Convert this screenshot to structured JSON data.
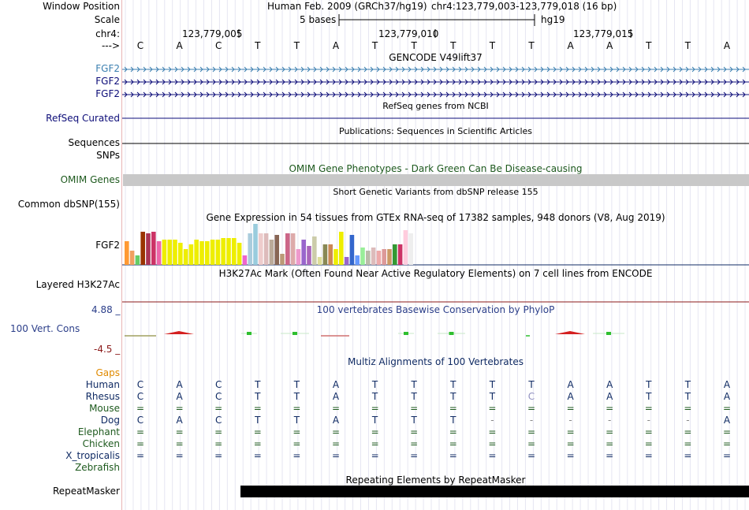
{
  "header": {
    "window_position_label": "Window Position",
    "assembly": "Human Feb. 2009 (GRCh37/hg19)",
    "position": "chr4:123,779,003-123,779,018 (16 bp)",
    "scale_label": "Scale",
    "scale_text": "5 bases",
    "scale_db": "hg19",
    "chrom_label": "chr4:",
    "strand_label": "--->",
    "coords": [
      "123,779,005",
      "123,779,010",
      "123,779,015"
    ]
  },
  "sequence": [
    "C",
    "A",
    "C",
    "T",
    "T",
    "A",
    "T",
    "T",
    "T",
    "T",
    "T",
    "A",
    "A",
    "T",
    "T",
    "A"
  ],
  "tracks": {
    "gencode": {
      "title": "GENCODE V49lift37",
      "genes": [
        "FGF2",
        "FGF2",
        "FGF2"
      ]
    },
    "refseq": {
      "title": "RefSeq genes from NCBI",
      "label": "RefSeq Curated"
    },
    "publications": {
      "title": "Publications: Sequences in Scientific Articles",
      "labels": [
        "Sequences",
        "SNPs"
      ]
    },
    "omim": {
      "title": "OMIM Gene Phenotypes - Dark Green Can Be Disease-causing",
      "label": "OMIM Genes"
    },
    "dbsnp": {
      "title": "Short Genetic Variants from dbSNP release 155",
      "label": "Common dbSNP(155)"
    },
    "gtex": {
      "title": "Gene Expression in 54 tissues from GTEx RNA-seq of 17382 samples, 948 donors (V8, Aug 2019)",
      "label": "FGF2"
    },
    "h3k27ac": {
      "title": "H3K27Ac Mark (Often Found Near Active Regulatory Elements) on 7 cell lines from ENCODE",
      "label": "Layered H3K27Ac"
    },
    "conservation": {
      "title": "100 vertebrates Basewise Conservation by PhyloP",
      "label": "100 Vert. Cons",
      "ymax": "4.88 _",
      "ymin": "-4.5 _"
    },
    "multiz": {
      "title": "Multiz Alignments of 100 Vertebrates",
      "gaps_label": "Gaps",
      "species": [
        {
          "name": "Human",
          "row": [
            "C",
            "A",
            "C",
            "T",
            "T",
            "A",
            "T",
            "T",
            "T",
            "T",
            "T",
            "A",
            "A",
            "T",
            "T",
            "A"
          ]
        },
        {
          "name": "Rhesus",
          "row": [
            "C",
            "A",
            "C",
            "T",
            "T",
            "A",
            "T",
            "T",
            "T",
            "T",
            "C",
            "A",
            "A",
            "T",
            "T",
            "A"
          ]
        },
        {
          "name": "Mouse",
          "row": [
            "=",
            "=",
            "=",
            "=",
            "=",
            "=",
            "=",
            "=",
            "=",
            "=",
            "=",
            "=",
            "=",
            "=",
            "=",
            "="
          ]
        },
        {
          "name": "Dog",
          "row": [
            "C",
            "A",
            "C",
            "T",
            "T",
            "A",
            "T",
            "T",
            "T",
            "-",
            "-",
            "-",
            "-",
            "-",
            "-",
            "A"
          ]
        },
        {
          "name": "Elephant",
          "row": [
            "=",
            "=",
            "=",
            "=",
            "=",
            "=",
            "=",
            "=",
            "=",
            "=",
            "=",
            "=",
            "=",
            "=",
            "=",
            "="
          ]
        },
        {
          "name": "Chicken",
          "row": [
            "=",
            "=",
            "=",
            "=",
            "=",
            "=",
            "=",
            "=",
            "=",
            "=",
            "=",
            "=",
            "=",
            "=",
            "=",
            "="
          ]
        },
        {
          "name": "X_tropicalis",
          "row": [
            "=",
            "=",
            "=",
            "=",
            "=",
            "=",
            "=",
            "=",
            "=",
            "=",
            "=",
            "=",
            "=",
            "=",
            "=",
            "="
          ]
        },
        {
          "name": "Zebrafish",
          "row": []
        }
      ]
    },
    "repeatmasker": {
      "title": "Repeating Elements by RepeatMasker",
      "label": "RepeatMasker"
    }
  },
  "chart_data": {
    "type": "bar",
    "title": "Gene Expression in 54 tissues from GTEx RNA-seq of 17382 samples, 948 donors (V8, Aug 2019)",
    "xlabel": "",
    "ylabel": "",
    "ylim": [
      0,
      52
    ],
    "values": [
      30,
      18,
      12,
      42,
      40,
      42,
      30,
      32,
      32,
      32,
      28,
      20,
      26,
      32,
      30,
      30,
      32,
      32,
      34,
      34,
      34,
      28,
      12,
      40,
      52,
      40,
      40,
      32,
      38,
      14,
      40,
      40,
      20,
      32,
      24,
      36,
      10,
      26,
      26,
      20,
      42,
      10,
      38,
      12,
      22,
      18,
      22,
      18,
      20,
      20,
      26,
      26,
      44,
      40
    ],
    "colors": [
      "#ff9933",
      "#f0a060",
      "#66cc66",
      "#993300",
      "#aa3355",
      "#cc3366",
      "#ee66aa",
      "#eeee00",
      "#eeee00",
      "#eeee00",
      "#eeee00",
      "#eeee00",
      "#eeee00",
      "#eeee00",
      "#eeee00",
      "#eeee00",
      "#eeee00",
      "#eeee00",
      "#eeee00",
      "#eeee00",
      "#eeee00",
      "#eeee00",
      "#ee66cc",
      "#aaccdd",
      "#99ccdd",
      "#eecccc",
      "#ddbbbb",
      "#bbaa99",
      "#886655",
      "#bb9977",
      "#cc6688",
      "#ddaaaa",
      "#ee99cc",
      "#9966cc",
      "#aa66bb",
      "#ccccaa",
      "#dddd99",
      "#888855",
      "#cc8855",
      "#eeee00",
      "#eeee00",
      "#9966cc",
      "#3366cc",
      "#6699ff",
      "#99ee99",
      "#bbbbaa",
      "#ddbbbb",
      "#eeaaaa",
      "#dd9999",
      "#cc9966",
      "#339933",
      "#cc3366",
      "#ffccdd",
      "#eeeeee"
    ]
  }
}
